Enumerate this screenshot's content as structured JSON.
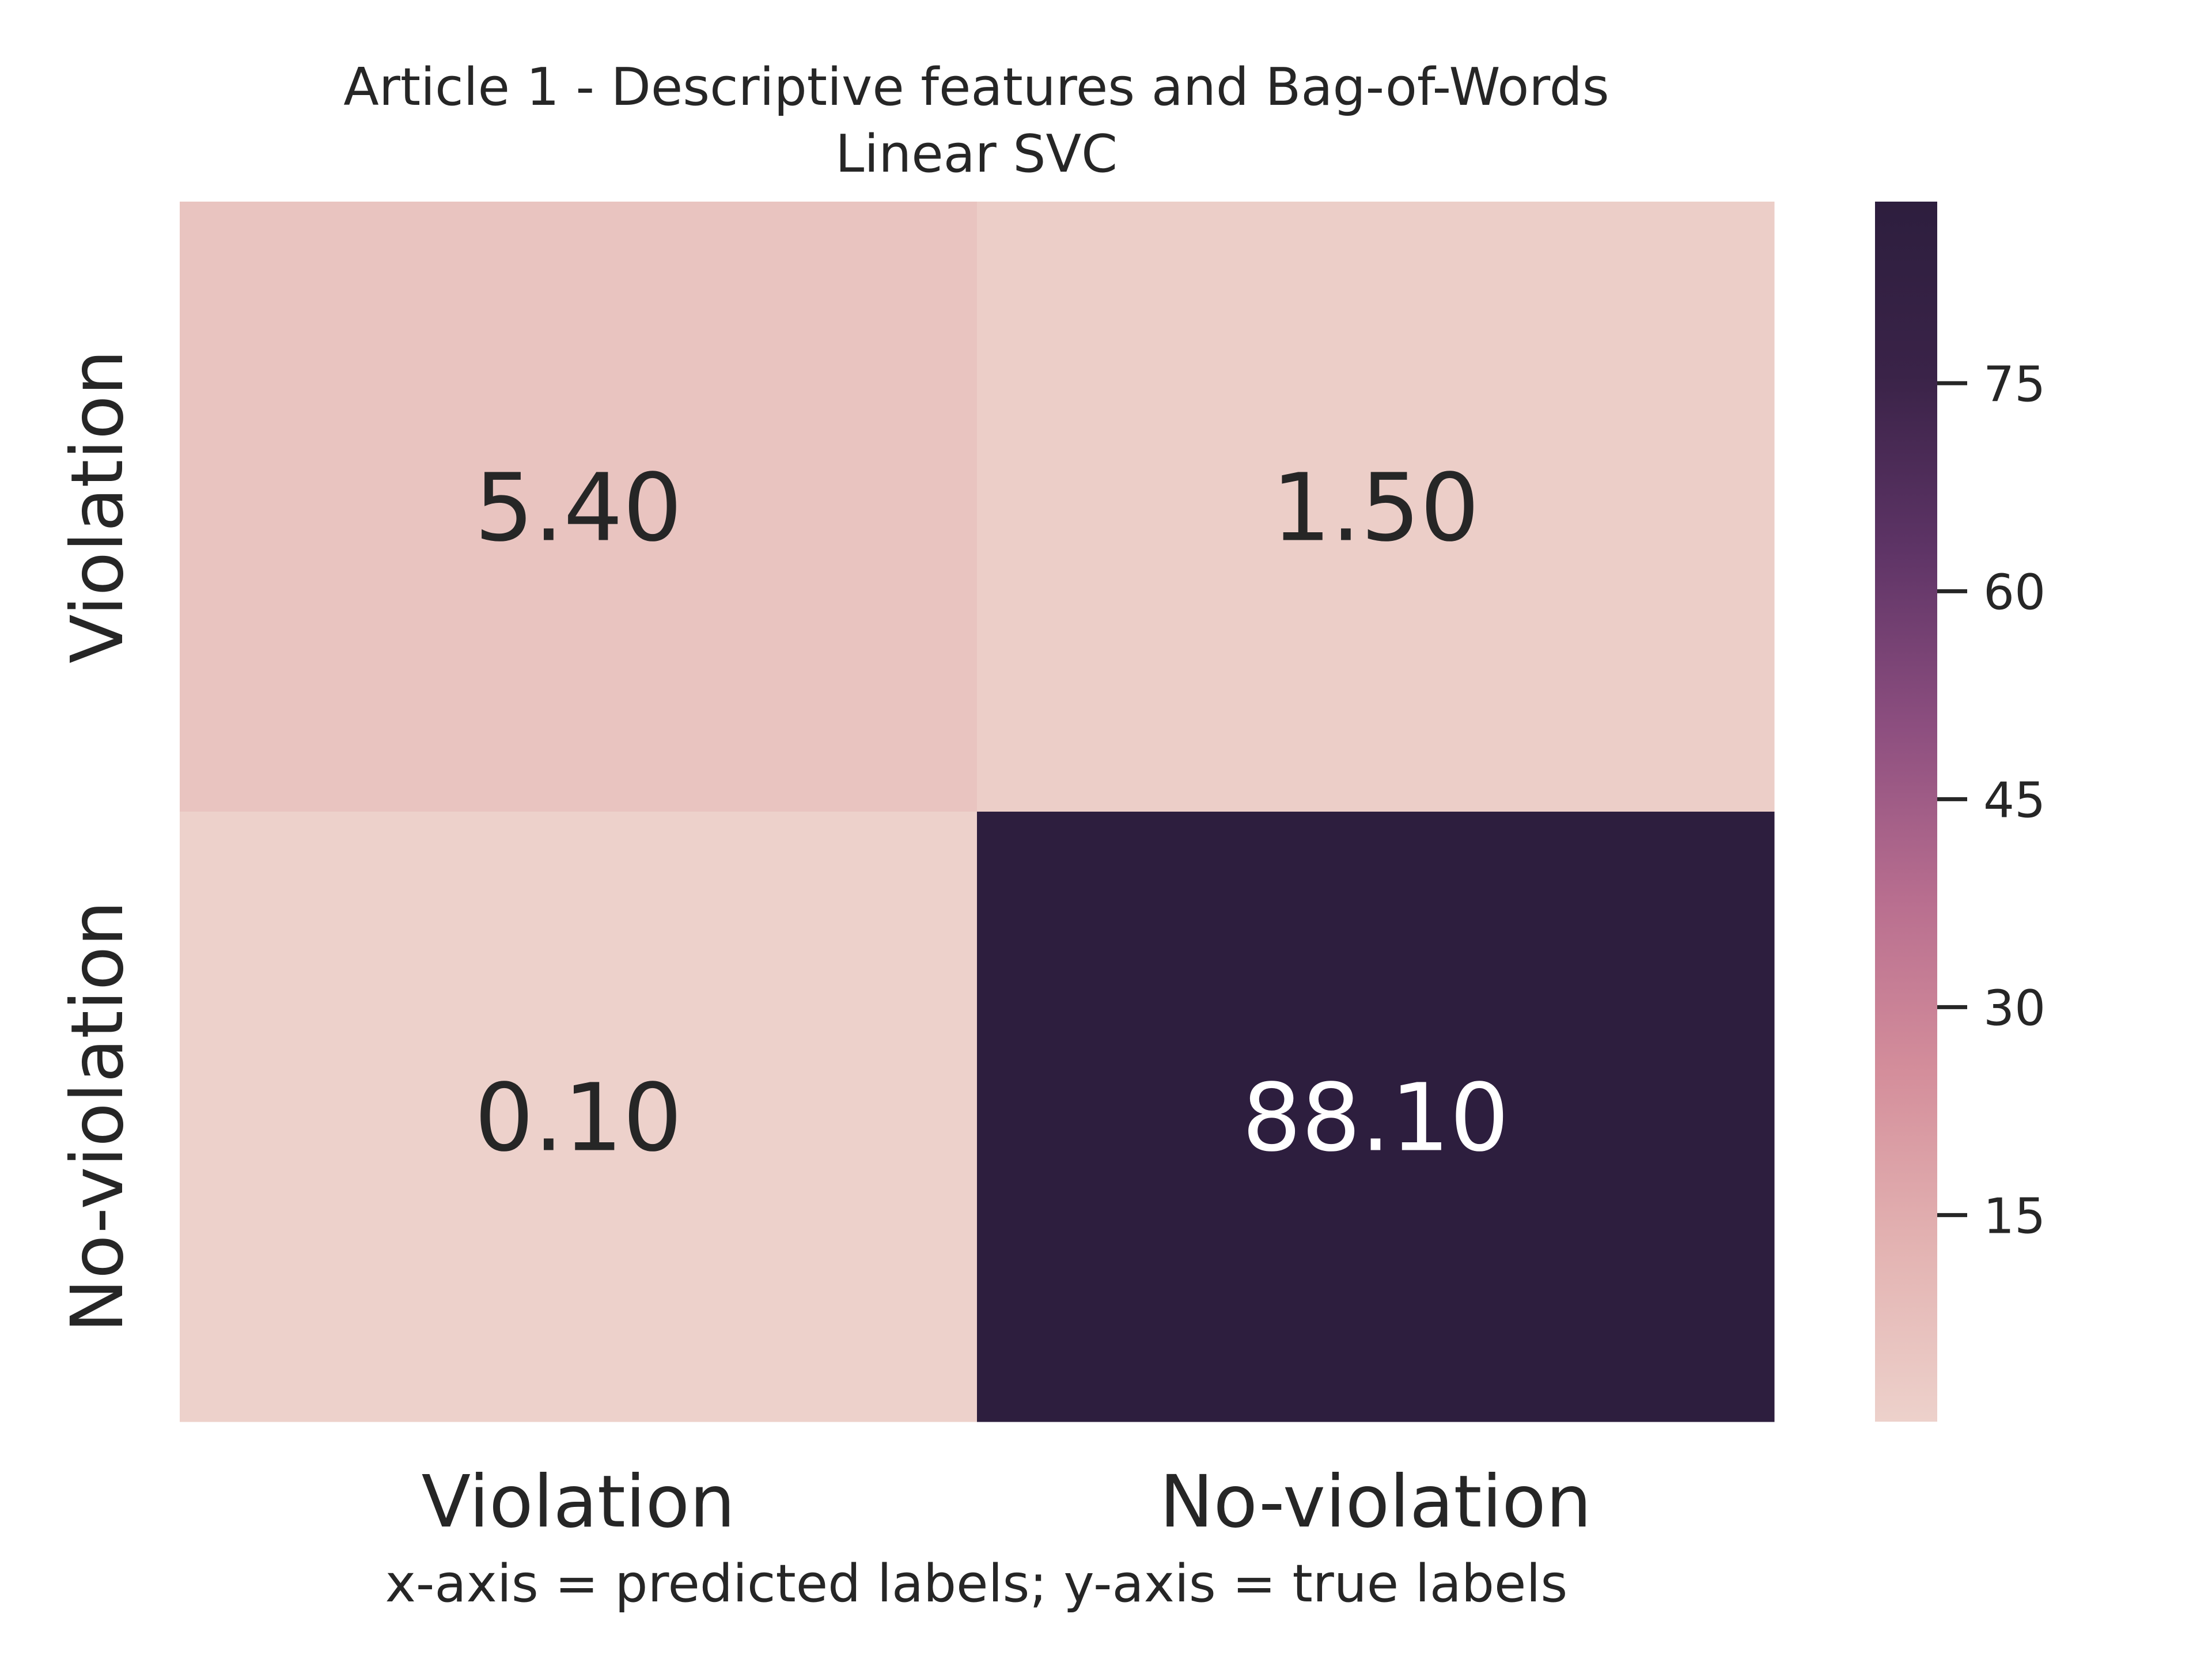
{
  "chart_data": {
    "type": "heatmap",
    "title": "Article 1 - Descriptive features and Bag-of-Words",
    "subtitle": "Linear SVC",
    "x_categories": [
      "Violation",
      "No-violation"
    ],
    "y_categories": [
      "Violation",
      "No-violation"
    ],
    "values": [
      [
        5.4,
        1.5
      ],
      [
        0.1,
        88.1
      ]
    ],
    "value_labels": [
      [
        "5.40",
        "1.50"
      ],
      [
        "0.10",
        "88.10"
      ]
    ],
    "caption": "x-axis = predicted labels; y-axis = true labels",
    "colorbar": {
      "ticks": [
        15,
        30,
        45,
        60,
        75
      ],
      "tick_labels": [
        "15",
        "30",
        "45",
        "60",
        "75"
      ],
      "range": [
        0.1,
        88.1
      ],
      "colors": [
        "#edd1cb",
        "#e3b3b2",
        "#d48e9b",
        "#b86e8f",
        "#8c4e7f",
        "#5e3466",
        "#3a2348",
        "#2d1e3e"
      ]
    },
    "grid": false,
    "text_color_light": "#ffffff",
    "text_color_dark": "#262626"
  }
}
